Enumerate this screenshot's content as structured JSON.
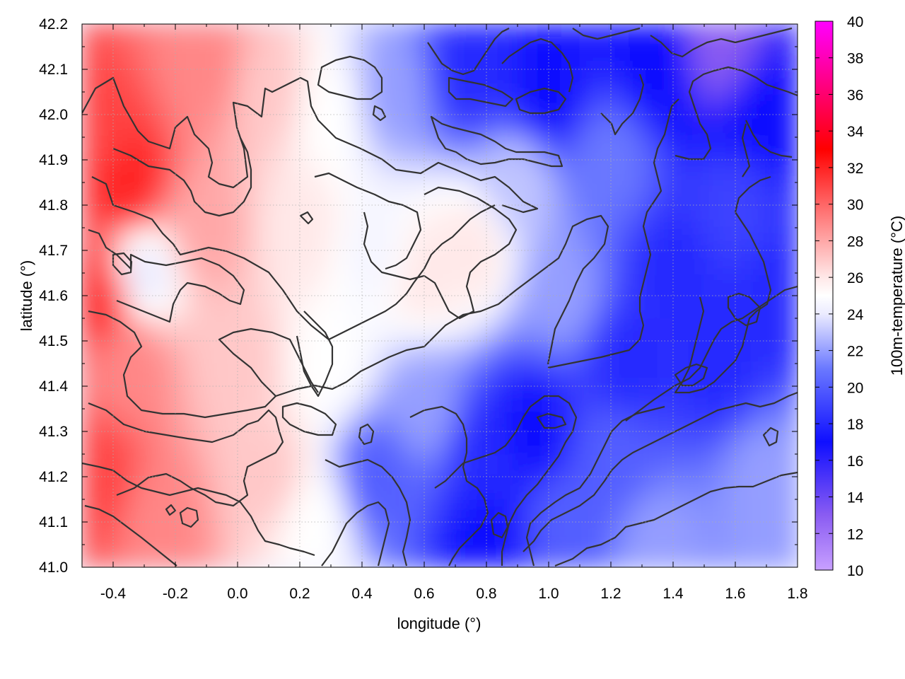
{
  "chart_data": {
    "type": "heatmap",
    "title": "",
    "xlabel": "longitude (°)",
    "ylabel": "latitude (°)",
    "colorbar_label": "100m-temperature (°C)",
    "xlim": [
      -0.5,
      1.8
    ],
    "ylim": [
      41.0,
      42.2
    ],
    "x_ticks": [
      -0.4,
      -0.2,
      0.0,
      0.2,
      0.4,
      0.6,
      0.8,
      1.0,
      1.2,
      1.4,
      1.6,
      1.8
    ],
    "x_tick_labels": [
      "-0.4",
      "-0.2",
      "0.0",
      "0.2",
      "0.4",
      "0.6",
      "0.8",
      "1.0",
      "1.2",
      "1.4",
      "1.6",
      "1.8"
    ],
    "y_ticks": [
      41.0,
      41.1,
      41.2,
      41.3,
      41.4,
      41.5,
      41.6,
      41.7,
      41.8,
      41.9,
      42.0,
      42.1,
      42.2
    ],
    "y_tick_labels": [
      "41.0",
      "41.1",
      "41.2",
      "41.3",
      "41.4",
      "41.5",
      "41.6",
      "41.7",
      "41.8",
      "41.9",
      "42.0",
      "42.1",
      "42.2"
    ],
    "color_range": [
      10,
      40
    ],
    "colorbar_ticks": [
      10,
      12,
      14,
      16,
      18,
      20,
      22,
      24,
      26,
      28,
      30,
      32,
      34,
      36,
      38,
      40
    ],
    "colorbar_tick_labels": [
      "10",
      "12",
      "14",
      "16",
      "18",
      "20",
      "22",
      "24",
      "26",
      "28",
      "30",
      "32",
      "34",
      "36",
      "38",
      "40"
    ],
    "palette": [
      {
        "value": 10,
        "color": "#c8a0ff"
      },
      {
        "value": 13,
        "color": "#8a5cf2"
      },
      {
        "value": 17,
        "color": "#0f0fff"
      },
      {
        "value": 21,
        "color": "#6a78ff"
      },
      {
        "value": 24,
        "color": "#ebebff"
      },
      {
        "value": 25,
        "color": "#ffffff"
      },
      {
        "value": 26,
        "color": "#ffe8e8"
      },
      {
        "value": 30,
        "color": "#ff6666"
      },
      {
        "value": 33,
        "color": "#ff0000"
      },
      {
        "value": 40,
        "color": "#ff00ff"
      }
    ],
    "grid": true,
    "contour_color": "#333333",
    "field_samples": [
      {
        "lon": -0.45,
        "lat": 41.95,
        "value": 31
      },
      {
        "lon": -0.35,
        "lat": 41.85,
        "value": 32
      },
      {
        "lon": -0.45,
        "lat": 41.6,
        "value": 32
      },
      {
        "lon": -0.45,
        "lat": 41.2,
        "value": 31
      },
      {
        "lon": -0.35,
        "lat": 41.45,
        "value": 29
      },
      {
        "lon": -0.25,
        "lat": 41.1,
        "value": 29
      },
      {
        "lon": -0.1,
        "lat": 42.1,
        "value": 29
      },
      {
        "lon": -0.1,
        "lat": 41.75,
        "value": 28
      },
      {
        "lon": 0.1,
        "lat": 42.05,
        "value": 27
      },
      {
        "lon": 0.0,
        "lat": 41.45,
        "value": 27
      },
      {
        "lon": -0.3,
        "lat": 41.65,
        "value": 24
      },
      {
        "lon": 0.1,
        "lat": 41.2,
        "value": 27
      },
      {
        "lon": 0.2,
        "lat": 41.75,
        "value": 26
      },
      {
        "lon": 0.3,
        "lat": 42.0,
        "value": 25
      },
      {
        "lon": 0.3,
        "lat": 41.45,
        "value": 25
      },
      {
        "lon": 0.25,
        "lat": 41.1,
        "value": 25
      },
      {
        "lon": 0.45,
        "lat": 41.7,
        "value": 24.5
      },
      {
        "lon": 0.5,
        "lat": 42.05,
        "value": 22
      },
      {
        "lon": 0.45,
        "lat": 41.2,
        "value": 20
      },
      {
        "lon": 0.6,
        "lat": 41.65,
        "value": 26
      },
      {
        "lon": 0.75,
        "lat": 41.7,
        "value": 26
      },
      {
        "lon": 0.6,
        "lat": 41.35,
        "value": 22
      },
      {
        "lon": 0.75,
        "lat": 42.1,
        "value": 18
      },
      {
        "lon": 0.8,
        "lat": 41.25,
        "value": 18
      },
      {
        "lon": 0.8,
        "lat": 41.05,
        "value": 17
      },
      {
        "lon": 0.9,
        "lat": 41.85,
        "value": 23
      },
      {
        "lon": 1.0,
        "lat": 42.05,
        "value": 17
      },
      {
        "lon": 0.95,
        "lat": 41.3,
        "value": 17
      },
      {
        "lon": 1.05,
        "lat": 41.6,
        "value": 22
      },
      {
        "lon": 1.05,
        "lat": 41.1,
        "value": 20
      },
      {
        "lon": 1.2,
        "lat": 41.9,
        "value": 21
      },
      {
        "lon": 1.25,
        "lat": 41.45,
        "value": 18
      },
      {
        "lon": 1.2,
        "lat": 41.25,
        "value": 20
      },
      {
        "lon": 1.35,
        "lat": 42.1,
        "value": 17
      },
      {
        "lon": 1.4,
        "lat": 41.65,
        "value": 18
      },
      {
        "lon": 1.35,
        "lat": 41.05,
        "value": 22
      },
      {
        "lon": 1.55,
        "lat": 42.15,
        "value": 13
      },
      {
        "lon": 1.6,
        "lat": 41.8,
        "value": 19
      },
      {
        "lon": 1.55,
        "lat": 41.45,
        "value": 18
      },
      {
        "lon": 1.7,
        "lat": 42.0,
        "value": 17
      },
      {
        "lon": 1.75,
        "lat": 41.6,
        "value": 18
      },
      {
        "lon": 1.7,
        "lat": 41.2,
        "value": 22
      },
      {
        "lon": 1.75,
        "lat": 41.05,
        "value": 22
      }
    ]
  }
}
